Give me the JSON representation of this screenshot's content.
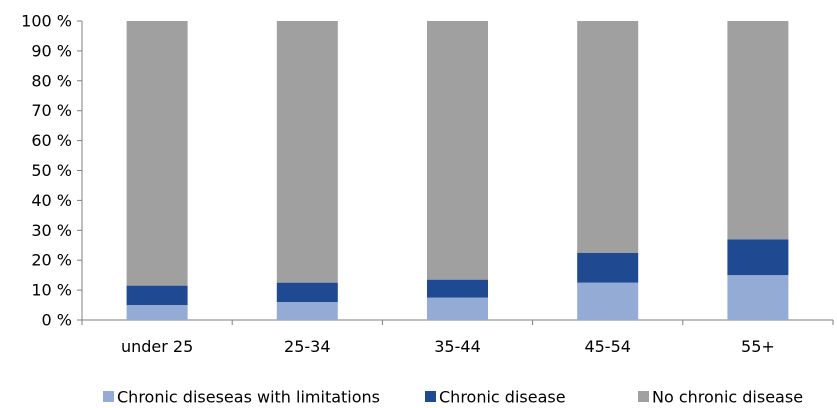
{
  "chart_data": {
    "type": "bar",
    "stacked": true,
    "percent_scale": true,
    "categories": [
      "under 25",
      "25-34",
      "35-44",
      "45-54",
      "55+"
    ],
    "series": [
      {
        "name": "Chronic diseseas with limitations",
        "color": "#94abd6",
        "values": [
          5,
          6,
          7.5,
          12.5,
          15
        ]
      },
      {
        "name": "Chronic disease",
        "color": "#1f4a91",
        "values": [
          6.5,
          6.5,
          6,
          10,
          12
        ]
      },
      {
        "name": "No chronic disease",
        "color": "#a0a0a0",
        "values": [
          88.5,
          87.5,
          86.5,
          77.5,
          73
        ]
      }
    ],
    "y_ticks": [
      "0 %",
      "10 %",
      "20 %",
      "30 %",
      "40 %",
      "50 %",
      "60 %",
      "70 %",
      "80 %",
      "90 %",
      "100 %"
    ],
    "ylim": [
      0,
      100
    ],
    "grid": false,
    "legend_position": "bottom"
  }
}
